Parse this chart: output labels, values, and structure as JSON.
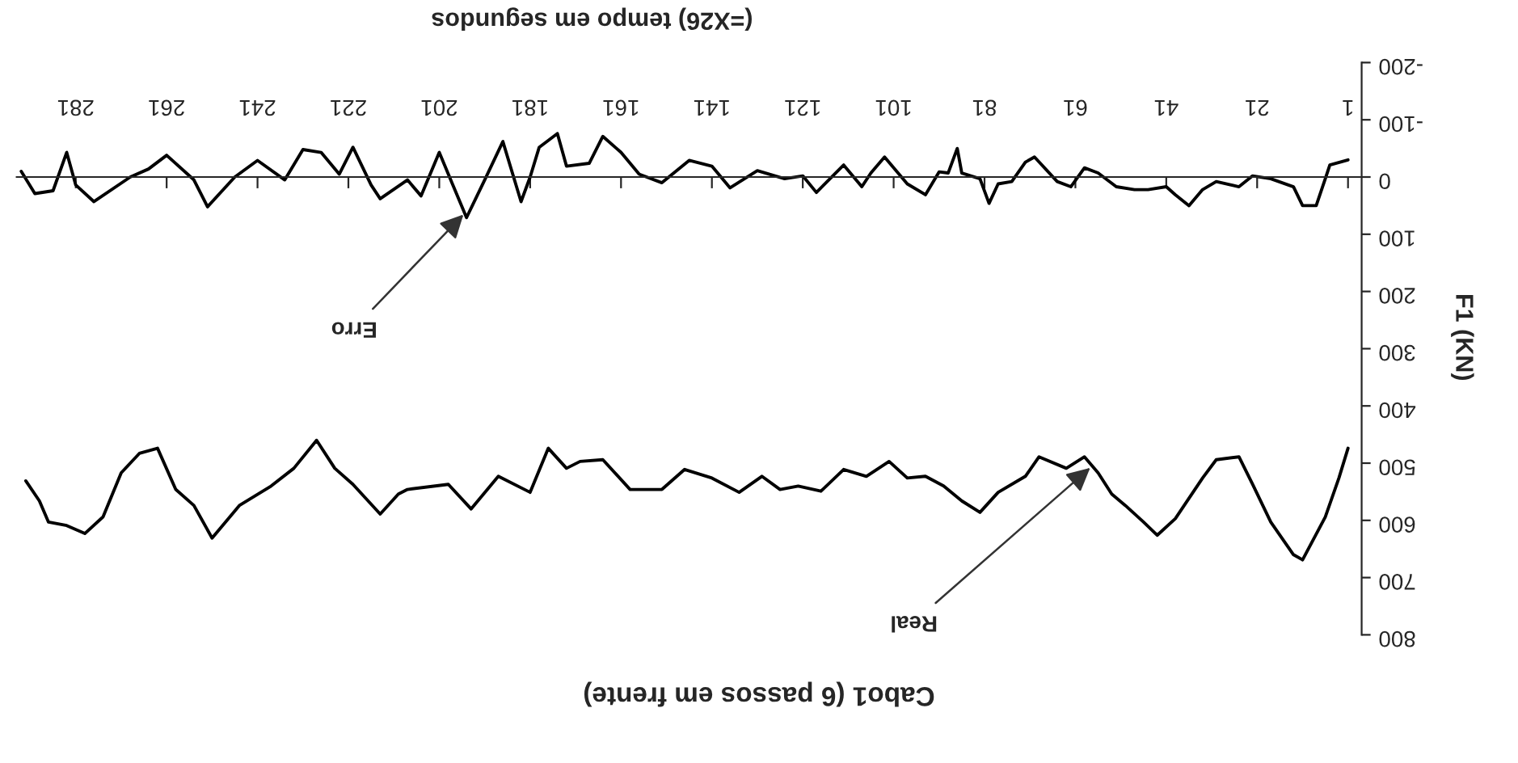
{
  "chart_data": {
    "type": "line",
    "title": "Cabo1 (6 passos em frente)",
    "xlabel": "(=X26) tempo em segundos",
    "ylabel": "F1 (KN)",
    "xlim": [
      294,
      -2
    ],
    "xticks": [
      1,
      21,
      41,
      61,
      81,
      101,
      121,
      141,
      161,
      181,
      201,
      221,
      241,
      261,
      281
    ],
    "ylim": [
      800,
      -200
    ],
    "yticks": [
      -200,
      -100,
      0,
      100,
      200,
      300,
      400,
      500,
      600,
      700,
      800
    ],
    "legend": false,
    "series": [
      {
        "color": "#000000",
        "x": [
          1,
          3,
          6,
          11,
          13,
          18,
          22,
          25,
          30,
          33,
          39,
          43,
          46,
          50,
          53,
          56,
          59,
          63,
          69,
          72,
          78,
          82,
          86,
          90,
          94,
          98,
          102,
          107,
          112,
          117,
          122,
          126,
          130,
          135,
          141,
          147,
          152,
          159,
          165,
          170,
          173,
          177,
          181,
          188,
          194,
          199,
          208,
          210,
          214,
          220,
          224,
          228,
          233,
          238,
          245,
          251,
          255,
          259,
          263,
          267,
          271,
          275,
          279,
          283,
          287,
          289,
          292
        ],
        "values": [
          474,
          526,
          594,
          669,
          660,
          603,
          537,
          489,
          494,
          526,
          597,
          626,
          603,
          574,
          554,
          517,
          489,
          509,
          489,
          523,
          551,
          586,
          566,
          540,
          523,
          526,
          497,
          523,
          511,
          549,
          540,
          546,
          523,
          551,
          526,
          511,
          546,
          546,
          494,
          497,
          509,
          474,
          551,
          523,
          580,
          537,
          546,
          554,
          589,
          537,
          509,
          460,
          509,
          540,
          574,
          631,
          574,
          546,
          474,
          483,
          517,
          594,
          623,
          609,
          603,
          566,
          531
        ]
      },
      {
        "color": "#000000",
        "x": [
          1,
          5,
          6,
          8,
          11,
          13,
          18,
          22,
          25,
          30,
          33,
          36,
          39,
          41,
          45,
          48,
          52,
          56,
          59,
          62,
          65,
          70,
          72,
          75,
          78,
          80,
          82,
          86,
          87,
          89,
          91,
          94,
          98,
          103,
          106,
          108,
          112,
          118,
          121,
          125,
          131,
          137,
          141,
          146,
          152,
          157,
          161,
          165,
          168,
          173,
          175,
          179,
          181,
          183,
          187,
          191,
          195,
          198,
          201,
          205,
          208,
          214,
          216,
          220,
          223,
          227,
          231,
          235,
          241,
          246,
          252,
          255,
          261,
          265,
          269,
          277,
          281,
          283,
          286,
          290,
          293
        ],
        "values": [
          -30,
          -21,
          3,
          50,
          50,
          17,
          3,
          -2,
          17,
          8,
          22,
          50,
          31,
          17,
          22,
          22,
          17,
          -7,
          -16,
          17,
          8,
          -35,
          -26,
          8,
          12,
          46,
          3,
          -7,
          -50,
          -7,
          -9,
          31,
          12,
          -35,
          -7,
          17,
          -21,
          27,
          -2,
          3,
          -11,
          19,
          -19,
          -29,
          10,
          -5,
          -43,
          -71,
          -24,
          -19,
          -76,
          -52,
          0,
          43,
          -62,
          5,
          71,
          14,
          -43,
          33,
          5,
          38,
          14,
          -52,
          -5,
          -43,
          -48,
          5,
          -29,
          0,
          52,
          5,
          -38,
          -14,
          0,
          43,
          14,
          -43,
          24,
          29,
          -10
        ]
      }
    ],
    "annotations": [
      {
        "text": "Real",
        "x": 57,
        "y": 503
      },
      {
        "text": "Erro",
        "x": 195,
        "y": 60
      }
    ]
  }
}
